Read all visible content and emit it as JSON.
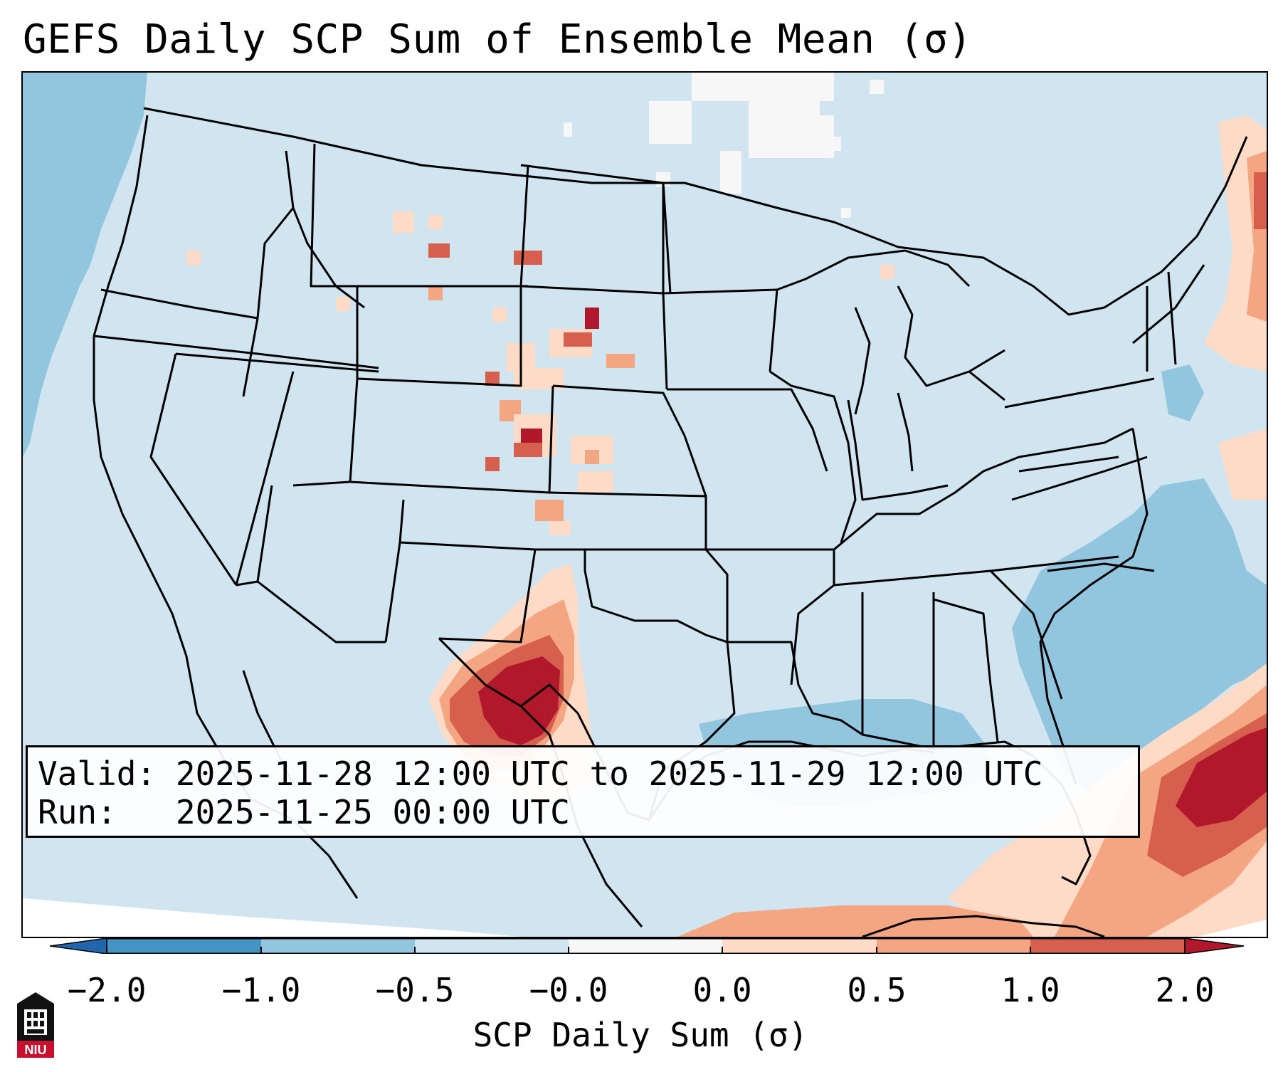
{
  "title": "GEFS Daily SCP Sum of Ensemble Mean (σ)",
  "info": {
    "valid_label": "Valid:",
    "valid_value": "2025-11-28 12:00 UTC to 2025-11-29 12:00 UTC",
    "run_label": "Run:",
    "run_value": "2025-11-25 00:00 UTC"
  },
  "colorbar": {
    "label": "SCP Daily Sum (σ)",
    "tick_labels": [
      "−2.0",
      "−1.0",
      "−0.5",
      "−0.0",
      "0.0",
      "0.5",
      "1.0",
      "2.0"
    ],
    "bins": [
      {
        "range": "−2.0 to −1.0",
        "color": "#4393c3"
      },
      {
        "range": "−1.0 to −0.5",
        "color": "#92c5de"
      },
      {
        "range": "−0.5 to −0.0",
        "color": "#d1e5f0"
      },
      {
        "range": "−0.0 to 0.0",
        "color": "#f7f7f7"
      },
      {
        "range": "0.0 to 0.5",
        "color": "#fddbc7"
      },
      {
        "range": "0.5 to 1.0",
        "color": "#f4a582"
      },
      {
        "range": "1.0 to 2.0",
        "color": "#d6604d"
      }
    ],
    "under_color": "#2166ac",
    "over_color": "#b2182b"
  },
  "map": {
    "projection": "Lambert Conformal — CONUS",
    "features": [
      "state borders",
      "country borders",
      "coastlines"
    ]
  },
  "logo": {
    "text": "NIU",
    "icon": "university-tower-icon",
    "color": "#c8102e"
  }
}
